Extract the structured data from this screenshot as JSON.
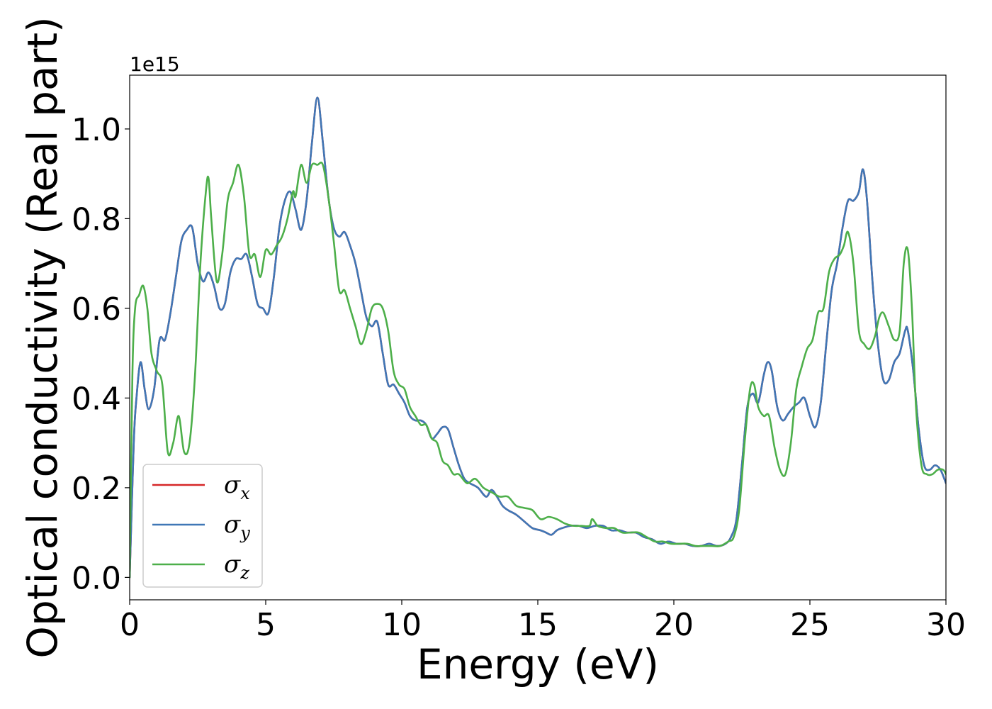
{
  "chart_data": {
    "type": "line",
    "xlabel": "Energy (eV)",
    "ylabel": "Optical conductivity (Real part)",
    "offset_text": "1e15",
    "xlim": [
      0,
      30
    ],
    "ylim": [
      -0.05,
      1.12
    ],
    "xticks": [
      0,
      5,
      10,
      15,
      20,
      25,
      30
    ],
    "yticks": [
      0.0,
      0.2,
      0.4,
      0.6,
      0.8,
      1.0
    ],
    "xtick_labels": [
      "0",
      "5",
      "10",
      "15",
      "20",
      "25",
      "30"
    ],
    "ytick_labels": [
      "0.0",
      "0.2",
      "0.4",
      "0.6",
      "0.8",
      "1.0"
    ],
    "grid": false,
    "legend_position": "lower-left",
    "series": [
      {
        "name": "σx",
        "symbol": "σ",
        "subscript": "x",
        "color": "#d62728",
        "x": [
          0,
          0.15,
          0.25,
          0.4,
          0.55,
          0.7,
          0.9,
          1.1,
          1.3,
          1.5,
          1.7,
          1.9,
          2.1,
          2.3,
          2.5,
          2.7,
          2.9,
          3.1,
          3.3,
          3.5,
          3.7,
          3.9,
          4.1,
          4.3,
          4.5,
          4.7,
          4.9,
          5.1,
          5.3,
          5.5,
          5.7,
          5.9,
          6.1,
          6.3,
          6.5,
          6.7,
          6.9,
          7.1,
          7.3,
          7.5,
          7.7,
          7.9,
          8.1,
          8.3,
          8.5,
          8.7,
          8.9,
          9.1,
          9.3,
          9.5,
          9.7,
          9.9,
          10.1,
          10.3,
          10.5,
          10.7,
          10.9,
          11.1,
          11.3,
          11.5,
          11.7,
          11.9,
          12.1,
          12.3,
          12.5,
          12.8,
          13.1,
          13.3,
          13.5,
          13.7,
          13.9,
          14.2,
          14.5,
          14.8,
          15.1,
          15.3,
          15.5,
          15.7,
          15.9,
          16.2,
          16.5,
          16.8,
          17.1,
          17.4,
          17.7,
          18.0,
          18.3,
          18.6,
          18.9,
          19.2,
          19.5,
          19.8,
          20.1,
          20.4,
          20.7,
          21.0,
          21.3,
          21.6,
          21.9,
          22.1,
          22.3,
          22.5,
          22.7,
          22.9,
          23.1,
          23.3,
          23.45,
          23.6,
          23.8,
          24.0,
          24.2,
          24.4,
          24.6,
          24.8,
          25.0,
          25.2,
          25.4,
          25.6,
          25.8,
          26.0,
          26.2,
          26.4,
          26.6,
          26.8,
          26.95,
          27.1,
          27.3,
          27.5,
          27.7,
          27.9,
          28.1,
          28.3,
          28.5,
          28.6,
          28.8,
          29.0,
          29.2,
          29.4,
          29.6,
          29.8,
          30.0
        ],
        "values": [
          0.0,
          0.3,
          0.4,
          0.48,
          0.42,
          0.375,
          0.42,
          0.53,
          0.53,
          0.59,
          0.67,
          0.75,
          0.775,
          0.78,
          0.7,
          0.66,
          0.68,
          0.65,
          0.6,
          0.61,
          0.68,
          0.71,
          0.71,
          0.72,
          0.67,
          0.61,
          0.6,
          0.59,
          0.67,
          0.78,
          0.84,
          0.86,
          0.82,
          0.775,
          0.84,
          0.97,
          1.07,
          0.97,
          0.85,
          0.78,
          0.76,
          0.77,
          0.74,
          0.7,
          0.64,
          0.58,
          0.56,
          0.57,
          0.5,
          0.43,
          0.43,
          0.41,
          0.39,
          0.36,
          0.35,
          0.35,
          0.34,
          0.31,
          0.32,
          0.335,
          0.33,
          0.29,
          0.25,
          0.22,
          0.21,
          0.2,
          0.18,
          0.195,
          0.18,
          0.16,
          0.15,
          0.14,
          0.125,
          0.11,
          0.105,
          0.1,
          0.095,
          0.105,
          0.11,
          0.115,
          0.115,
          0.11,
          0.115,
          0.115,
          0.105,
          0.105,
          0.1,
          0.1,
          0.09,
          0.085,
          0.075,
          0.08,
          0.075,
          0.075,
          0.07,
          0.07,
          0.075,
          0.07,
          0.075,
          0.09,
          0.13,
          0.25,
          0.38,
          0.41,
          0.39,
          0.45,
          0.48,
          0.46,
          0.38,
          0.35,
          0.365,
          0.38,
          0.39,
          0.4,
          0.36,
          0.335,
          0.39,
          0.52,
          0.64,
          0.7,
          0.78,
          0.84,
          0.84,
          0.86,
          0.91,
          0.84,
          0.66,
          0.52,
          0.44,
          0.44,
          0.48,
          0.5,
          0.55,
          0.55,
          0.46,
          0.33,
          0.25,
          0.24,
          0.25,
          0.24,
          0.21
        ]
      },
      {
        "name": "σy",
        "symbol": "σ",
        "subscript": "y",
        "color": "#3f77b6",
        "x": [
          0,
          0.15,
          0.25,
          0.4,
          0.55,
          0.7,
          0.9,
          1.1,
          1.3,
          1.5,
          1.7,
          1.9,
          2.1,
          2.3,
          2.5,
          2.7,
          2.9,
          3.1,
          3.3,
          3.5,
          3.7,
          3.9,
          4.1,
          4.3,
          4.5,
          4.7,
          4.9,
          5.1,
          5.3,
          5.5,
          5.7,
          5.9,
          6.1,
          6.3,
          6.5,
          6.7,
          6.9,
          7.1,
          7.3,
          7.5,
          7.7,
          7.9,
          8.1,
          8.3,
          8.5,
          8.7,
          8.9,
          9.1,
          9.3,
          9.5,
          9.7,
          9.9,
          10.1,
          10.3,
          10.5,
          10.7,
          10.9,
          11.1,
          11.3,
          11.5,
          11.7,
          11.9,
          12.1,
          12.3,
          12.5,
          12.8,
          13.1,
          13.3,
          13.5,
          13.7,
          13.9,
          14.2,
          14.5,
          14.8,
          15.1,
          15.3,
          15.5,
          15.7,
          15.9,
          16.2,
          16.5,
          16.8,
          17.1,
          17.4,
          17.7,
          18.0,
          18.3,
          18.6,
          18.9,
          19.2,
          19.5,
          19.8,
          20.1,
          20.4,
          20.7,
          21.0,
          21.3,
          21.6,
          21.9,
          22.1,
          22.3,
          22.5,
          22.7,
          22.9,
          23.1,
          23.3,
          23.45,
          23.6,
          23.8,
          24.0,
          24.2,
          24.4,
          24.6,
          24.8,
          25.0,
          25.2,
          25.4,
          25.6,
          25.8,
          26.0,
          26.2,
          26.4,
          26.6,
          26.8,
          26.95,
          27.1,
          27.3,
          27.5,
          27.7,
          27.9,
          28.1,
          28.3,
          28.5,
          28.6,
          28.8,
          29.0,
          29.2,
          29.4,
          29.6,
          29.8,
          30.0
        ],
        "values": [
          0.0,
          0.3,
          0.4,
          0.48,
          0.42,
          0.375,
          0.42,
          0.53,
          0.53,
          0.59,
          0.67,
          0.75,
          0.775,
          0.78,
          0.7,
          0.66,
          0.68,
          0.65,
          0.6,
          0.61,
          0.68,
          0.71,
          0.71,
          0.72,
          0.67,
          0.61,
          0.6,
          0.59,
          0.67,
          0.78,
          0.84,
          0.86,
          0.82,
          0.775,
          0.84,
          0.97,
          1.07,
          0.97,
          0.85,
          0.78,
          0.76,
          0.77,
          0.74,
          0.7,
          0.64,
          0.58,
          0.56,
          0.57,
          0.5,
          0.43,
          0.43,
          0.41,
          0.39,
          0.36,
          0.35,
          0.35,
          0.34,
          0.31,
          0.32,
          0.335,
          0.33,
          0.29,
          0.25,
          0.22,
          0.21,
          0.2,
          0.18,
          0.195,
          0.18,
          0.16,
          0.15,
          0.14,
          0.125,
          0.11,
          0.105,
          0.1,
          0.095,
          0.105,
          0.11,
          0.115,
          0.115,
          0.11,
          0.115,
          0.115,
          0.105,
          0.105,
          0.1,
          0.1,
          0.09,
          0.085,
          0.075,
          0.08,
          0.075,
          0.075,
          0.07,
          0.07,
          0.075,
          0.07,
          0.075,
          0.09,
          0.13,
          0.25,
          0.38,
          0.41,
          0.39,
          0.45,
          0.48,
          0.46,
          0.38,
          0.35,
          0.365,
          0.38,
          0.39,
          0.4,
          0.36,
          0.335,
          0.39,
          0.52,
          0.64,
          0.7,
          0.78,
          0.84,
          0.84,
          0.86,
          0.91,
          0.84,
          0.66,
          0.52,
          0.44,
          0.44,
          0.48,
          0.5,
          0.55,
          0.55,
          0.46,
          0.33,
          0.25,
          0.24,
          0.25,
          0.24,
          0.21
        ]
      },
      {
        "name": "σz",
        "symbol": "σ",
        "subscript": "z",
        "color": "#4daf4a",
        "x": [
          0,
          0.1,
          0.2,
          0.35,
          0.5,
          0.65,
          0.8,
          1.0,
          1.2,
          1.4,
          1.6,
          1.8,
          2.0,
          2.2,
          2.4,
          2.6,
          2.8,
          2.9,
          3.0,
          3.2,
          3.4,
          3.6,
          3.8,
          4.0,
          4.2,
          4.4,
          4.6,
          4.8,
          5.0,
          5.2,
          5.4,
          5.6,
          5.8,
          6.0,
          6.1,
          6.3,
          6.5,
          6.7,
          6.9,
          7.1,
          7.3,
          7.5,
          7.7,
          7.9,
          8.1,
          8.3,
          8.5,
          8.7,
          8.9,
          9.1,
          9.3,
          9.5,
          9.7,
          9.9,
          10.1,
          10.3,
          10.5,
          10.7,
          10.9,
          11.1,
          11.3,
          11.5,
          11.7,
          11.9,
          12.1,
          12.4,
          12.7,
          13.0,
          13.3,
          13.6,
          13.9,
          14.2,
          14.5,
          14.8,
          15.1,
          15.4,
          15.7,
          16.0,
          16.3,
          16.6,
          16.9,
          17.0,
          17.2,
          17.5,
          17.8,
          18.1,
          18.4,
          18.7,
          19.0,
          19.3,
          19.6,
          19.9,
          20.2,
          20.5,
          20.8,
          21.1,
          21.4,
          21.7,
          22.0,
          22.2,
          22.4,
          22.6,
          22.8,
          22.95,
          23.1,
          23.3,
          23.5,
          23.7,
          23.9,
          24.1,
          24.3,
          24.5,
          24.7,
          24.9,
          25.1,
          25.3,
          25.5,
          25.7,
          25.9,
          26.1,
          26.25,
          26.4,
          26.6,
          26.8,
          27.0,
          27.2,
          27.4,
          27.55,
          27.7,
          27.9,
          28.1,
          28.3,
          28.45,
          28.6,
          28.75,
          28.9,
          29.1,
          29.3,
          29.5,
          29.7,
          29.9,
          30.0
        ],
        "values": [
          0.0,
          0.45,
          0.6,
          0.63,
          0.65,
          0.6,
          0.5,
          0.46,
          0.43,
          0.28,
          0.3,
          0.36,
          0.28,
          0.3,
          0.45,
          0.7,
          0.86,
          0.89,
          0.8,
          0.66,
          0.72,
          0.84,
          0.88,
          0.92,
          0.85,
          0.72,
          0.72,
          0.67,
          0.73,
          0.72,
          0.74,
          0.76,
          0.8,
          0.86,
          0.85,
          0.92,
          0.88,
          0.92,
          0.92,
          0.92,
          0.85,
          0.75,
          0.64,
          0.64,
          0.6,
          0.56,
          0.52,
          0.55,
          0.6,
          0.61,
          0.6,
          0.55,
          0.46,
          0.43,
          0.42,
          0.38,
          0.36,
          0.34,
          0.34,
          0.31,
          0.3,
          0.26,
          0.25,
          0.23,
          0.23,
          0.21,
          0.22,
          0.2,
          0.19,
          0.18,
          0.18,
          0.16,
          0.155,
          0.15,
          0.13,
          0.135,
          0.13,
          0.12,
          0.115,
          0.115,
          0.115,
          0.13,
          0.115,
          0.11,
          0.11,
          0.1,
          0.1,
          0.1,
          0.09,
          0.08,
          0.08,
          0.075,
          0.075,
          0.075,
          0.07,
          0.07,
          0.07,
          0.07,
          0.08,
          0.09,
          0.15,
          0.3,
          0.42,
          0.43,
          0.38,
          0.36,
          0.36,
          0.29,
          0.24,
          0.23,
          0.3,
          0.42,
          0.47,
          0.51,
          0.53,
          0.59,
          0.6,
          0.68,
          0.71,
          0.72,
          0.74,
          0.77,
          0.7,
          0.55,
          0.52,
          0.51,
          0.54,
          0.58,
          0.59,
          0.56,
          0.53,
          0.55,
          0.7,
          0.73,
          0.6,
          0.38,
          0.25,
          0.23,
          0.23,
          0.24,
          0.24,
          0.23
        ]
      }
    ]
  }
}
